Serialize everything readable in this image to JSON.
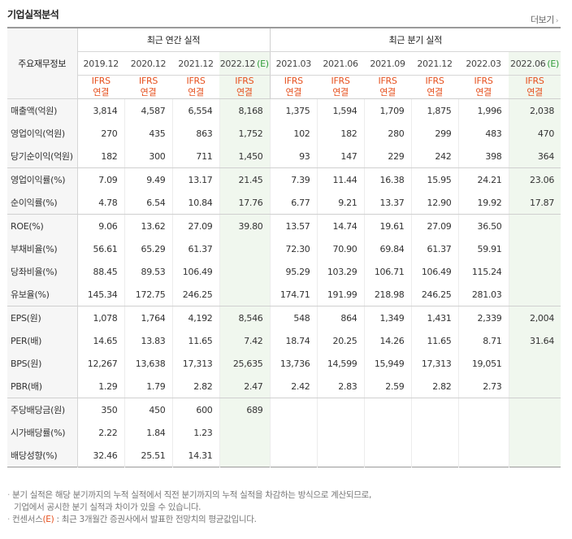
{
  "title": "기업실적분석",
  "more_label": "더보기",
  "more_chevron": "›",
  "header": {
    "label": "주요재무정보",
    "annual_title": "최근 연간 실적",
    "quarter_title": "최근 분기 실적",
    "periods": [
      "2019.12",
      "2020.12",
      "2021.12",
      "2022.12",
      "2021.03",
      "2021.06",
      "2021.09",
      "2021.12",
      "2022.03",
      "2022.06"
    ],
    "estimate_mark": "(E)",
    "std_line1": "IFRS",
    "std_line2": "연결"
  },
  "rows": [
    {
      "label": "매출액(억원)",
      "values": [
        "3,814",
        "4,587",
        "6,554",
        "8,168",
        "1,375",
        "1,594",
        "1,709",
        "1,875",
        "1,996",
        "2,038"
      ]
    },
    {
      "label": "영업이익(억원)",
      "values": [
        "270",
        "435",
        "863",
        "1,752",
        "102",
        "182",
        "280",
        "299",
        "483",
        "470"
      ]
    },
    {
      "label": "당기순이익(억원)",
      "values": [
        "182",
        "300",
        "711",
        "1,450",
        "93",
        "147",
        "229",
        "242",
        "398",
        "364"
      ]
    },
    {
      "label": "영업이익률(%)",
      "values": [
        "7.09",
        "9.49",
        "13.17",
        "21.45",
        "7.39",
        "11.44",
        "16.38",
        "15.95",
        "24.21",
        "23.06"
      ]
    },
    {
      "label": "순이익률(%)",
      "values": [
        "4.78",
        "6.54",
        "10.84",
        "17.76",
        "6.77",
        "9.21",
        "13.37",
        "12.90",
        "19.92",
        "17.87"
      ]
    },
    {
      "label": "ROE(%)",
      "values": [
        "9.06",
        "13.62",
        "27.09",
        "39.80",
        "13.57",
        "14.74",
        "19.61",
        "27.09",
        "36.50",
        ""
      ]
    },
    {
      "label": "부채비율(%)",
      "values": [
        "56.61",
        "65.29",
        "61.37",
        "",
        "72.30",
        "70.90",
        "69.84",
        "61.37",
        "59.91",
        ""
      ]
    },
    {
      "label": "당좌비율(%)",
      "values": [
        "88.45",
        "89.53",
        "106.49",
        "",
        "95.29",
        "103.29",
        "106.71",
        "106.49",
        "115.24",
        ""
      ]
    },
    {
      "label": "유보율(%)",
      "values": [
        "145.34",
        "172.75",
        "246.25",
        "",
        "174.71",
        "191.99",
        "218.98",
        "246.25",
        "281.03",
        ""
      ]
    },
    {
      "label": "EPS(원)",
      "values": [
        "1,078",
        "1,764",
        "4,192",
        "8,546",
        "548",
        "864",
        "1,349",
        "1,431",
        "2,339",
        "2,004"
      ]
    },
    {
      "label": "PER(배)",
      "values": [
        "14.65",
        "13.83",
        "11.65",
        "7.42",
        "18.74",
        "20.25",
        "14.26",
        "11.65",
        "8.71",
        "31.64"
      ]
    },
    {
      "label": "BPS(원)",
      "values": [
        "12,267",
        "13,638",
        "17,313",
        "25,635",
        "13,736",
        "14,599",
        "15,949",
        "17,313",
        "19,051",
        ""
      ]
    },
    {
      "label": "PBR(배)",
      "values": [
        "1.29",
        "1.79",
        "2.82",
        "2.47",
        "2.42",
        "2.83",
        "2.59",
        "2.82",
        "2.73",
        ""
      ]
    },
    {
      "label": "주당배당금(원)",
      "values": [
        "350",
        "450",
        "600",
        "689",
        "",
        "",
        "",
        "",
        "",
        ""
      ]
    },
    {
      "label": "시가배당률(%)",
      "values": [
        "2.22",
        "1.84",
        "1.23",
        "",
        "",
        "",
        "",
        "",
        "",
        ""
      ]
    },
    {
      "label": "배당성향(%)",
      "values": [
        "32.46",
        "25.51",
        "14.31",
        "",
        "",
        "",
        "",
        "",
        "",
        ""
      ]
    }
  ],
  "notes": {
    "line1": "분기 실적은 해당 분기까지의 누적 실적에서 직전 분기까지의 누적 실적을 차감하는 방식으로 계산되므로,",
    "line2": "기업에서 공시한 분기 실적과 차이가 있을 수 있습니다.",
    "line3_prefix": "컨센서스",
    "line3_mark": "(E)",
    "line3_suffix": ": 최근 3개월간 증권사에서 발표한 전망치의 평균값입니다."
  },
  "colors": {
    "estimate_bg": "#f0f7ee",
    "ifrs": "#e6501e",
    "label_bg": "#f6f6f6"
  }
}
